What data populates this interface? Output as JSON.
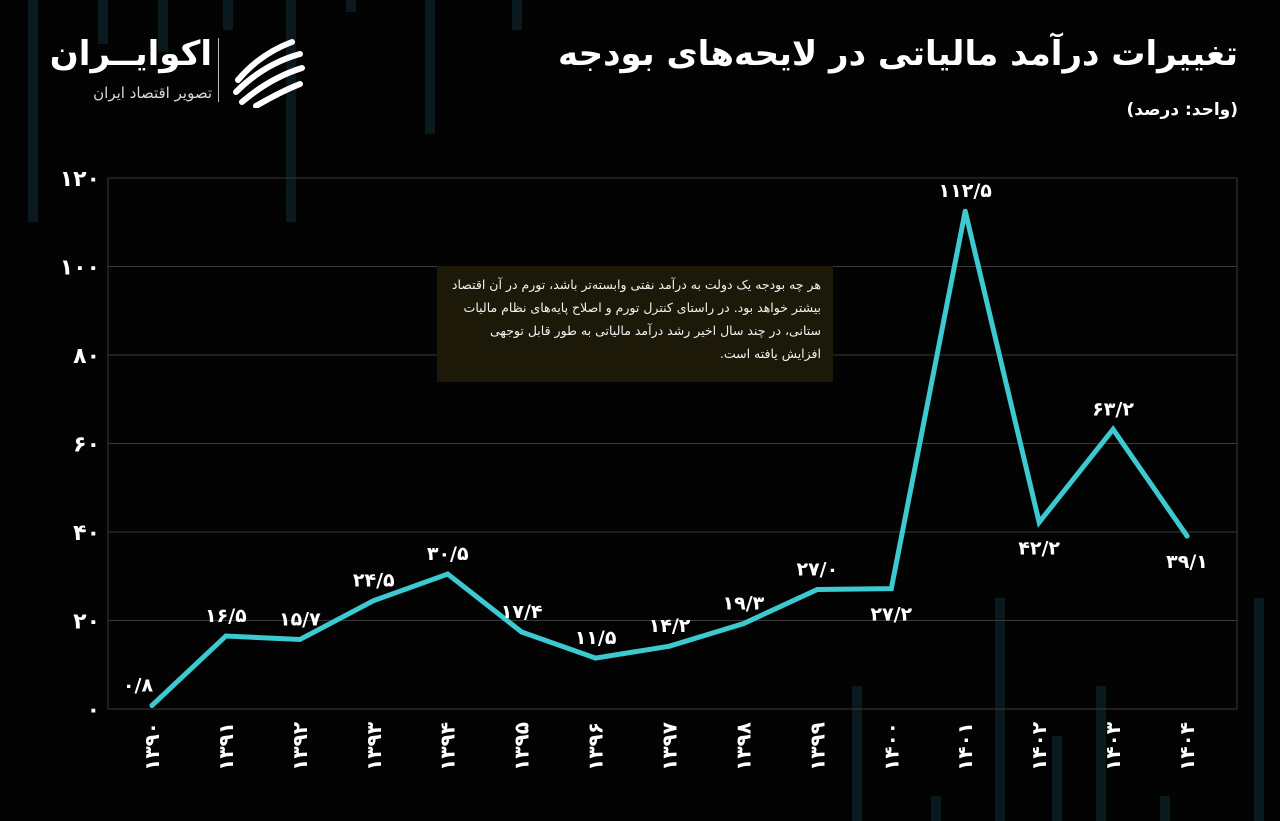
{
  "header": {
    "title": "تغییرات درآمد مالیاتی در لایحه‌های بودجه",
    "unit": "(واحد: درصد)"
  },
  "logo": {
    "name": "اکوایــران",
    "tagline": "تصویر اقتصاد ایران",
    "mark_icon": "ecoiran-swirl-icon"
  },
  "annotation": {
    "text": "هر چه بودجه یک دولت به درآمد نفتی وابسته‌تر باشد، تورم در آن اقتصاد بیشتر خواهد بود. در راستای کنترل تورم و اصلاح پایه‌های نظام مالیات ستانی، در چند سال اخیر رشد درآمد مالیاتی به طور قابل توجهی افزایش یافته است."
  },
  "colors": {
    "background": "#030303",
    "line": "#3cc9cf",
    "grid": "#3a3a3a",
    "text": "#ffffff",
    "note_bg": "#1c1908"
  },
  "chart_data": {
    "type": "line",
    "title": "تغییرات درآمد مالیاتی در لایحه‌های بودجه",
    "ylabel": "",
    "xlabel": "",
    "ylim": [
      0,
      120
    ],
    "yticks": [
      0,
      20,
      40,
      60,
      80,
      100,
      120
    ],
    "ytick_labels": [
      "۰",
      "۲۰",
      "۴۰",
      "۶۰",
      "۸۰",
      "۱۰۰",
      "۱۲۰"
    ],
    "grid": true,
    "categories": [
      "۱۳۹۰",
      "۱۳۹۱",
      "۱۳۹۲",
      "۱۳۹۳",
      "۱۳۹۴",
      "۱۳۹۵",
      "۱۳۹۶",
      "۱۳۹۷",
      "۱۳۹۸",
      "۱۳۹۹",
      "۱۴۰۰",
      "۱۴۰۱",
      "۱۴۰۲",
      "۱۴۰۳",
      "۱۴۰۴"
    ],
    "values": [
      0.8,
      16.5,
      15.7,
      24.5,
      30.5,
      17.4,
      11.5,
      14.2,
      19.3,
      27.0,
      27.2,
      112.5,
      42.2,
      63.2,
      39.1
    ],
    "value_labels": [
      "۰/۸",
      "۱۶/۵",
      "۱۵/۷",
      "۲۴/۵",
      "۳۰/۵",
      "۱۷/۴",
      "۱۱/۵",
      "۱۴/۲",
      "۱۹/۳",
      "۲۷/۰",
      "۲۷/۲",
      "۱۱۲/۵",
      "۴۲/۲",
      "۶۳/۲",
      "۳۹/۱"
    ],
    "label_positions": [
      "above",
      "above",
      "above",
      "above",
      "above",
      "above",
      "above",
      "above",
      "above",
      "above",
      "below",
      "above",
      "below",
      "above",
      "below"
    ]
  }
}
